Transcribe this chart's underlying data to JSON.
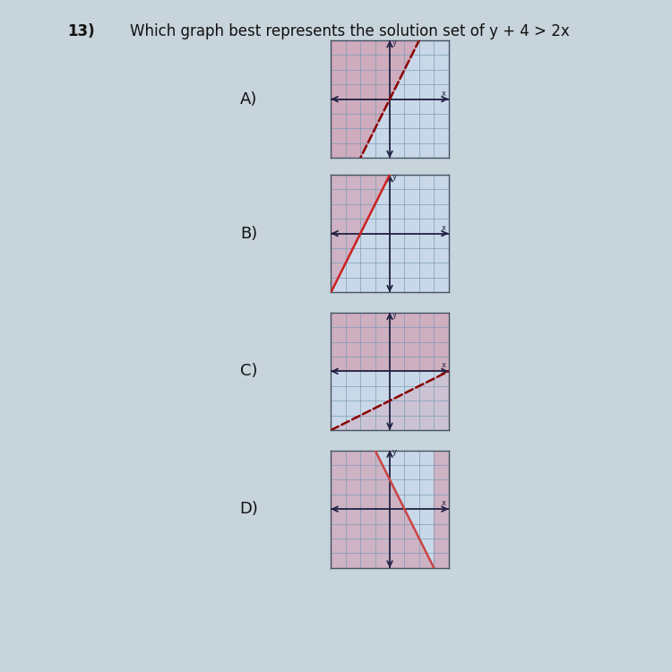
{
  "title": "Which graph best represents the solution set of y + 4 > 2x",
  "question_num": "13)",
  "graphs": [
    {
      "label": "A)",
      "line_slope": 2,
      "line_intercept": 0,
      "line_style": "dashed",
      "line_color": "#8B0000",
      "shade_left": true,
      "shade_color": "#d4889a",
      "shade_alpha": 0.55,
      "xlim": [
        -4,
        4
      ],
      "ylim": [
        -4,
        4
      ],
      "grid_color": "#7a9ab5",
      "bg_color": "#c8d8e8"
    },
    {
      "label": "B)",
      "line_slope": 2,
      "line_intercept": 4,
      "line_style": "solid",
      "line_color": "#cc2222",
      "shade_left": true,
      "shade_color": "#d4889a",
      "shade_alpha": 0.45,
      "xlim": [
        -4,
        4
      ],
      "ylim": [
        -4,
        4
      ],
      "grid_color": "#7a9ab5",
      "bg_color": "#c8d8e8"
    },
    {
      "label": "C)",
      "line_slope": 0.5,
      "line_intercept": -2,
      "line_style": "dashed",
      "line_color": "#8B0000",
      "shade_left": false,
      "shade_above": true,
      "shade_color": "#d4889a",
      "shade_alpha": 0.5,
      "xlim": [
        -4,
        4
      ],
      "ylim": [
        -4,
        4
      ],
      "grid_color": "#7a9ab5",
      "bg_color": "#c8d8e8"
    },
    {
      "label": "D)",
      "line_slope": -2,
      "line_intercept": 2,
      "line_style": "solid",
      "line_color": "#cc4444",
      "shade_left": false,
      "shade_above": false,
      "shade_right": true,
      "shade_color": "#d4889a",
      "shade_alpha": 0.45,
      "xlim": [
        -4,
        4
      ],
      "ylim": [
        -4,
        4
      ],
      "grid_color": "#7a9ab5",
      "bg_color": "#c8d8e8"
    }
  ],
  "overall_bg": "#c8d4dc",
  "title_fontsize": 12,
  "label_fontsize": 13,
  "axis_color": "#222244"
}
